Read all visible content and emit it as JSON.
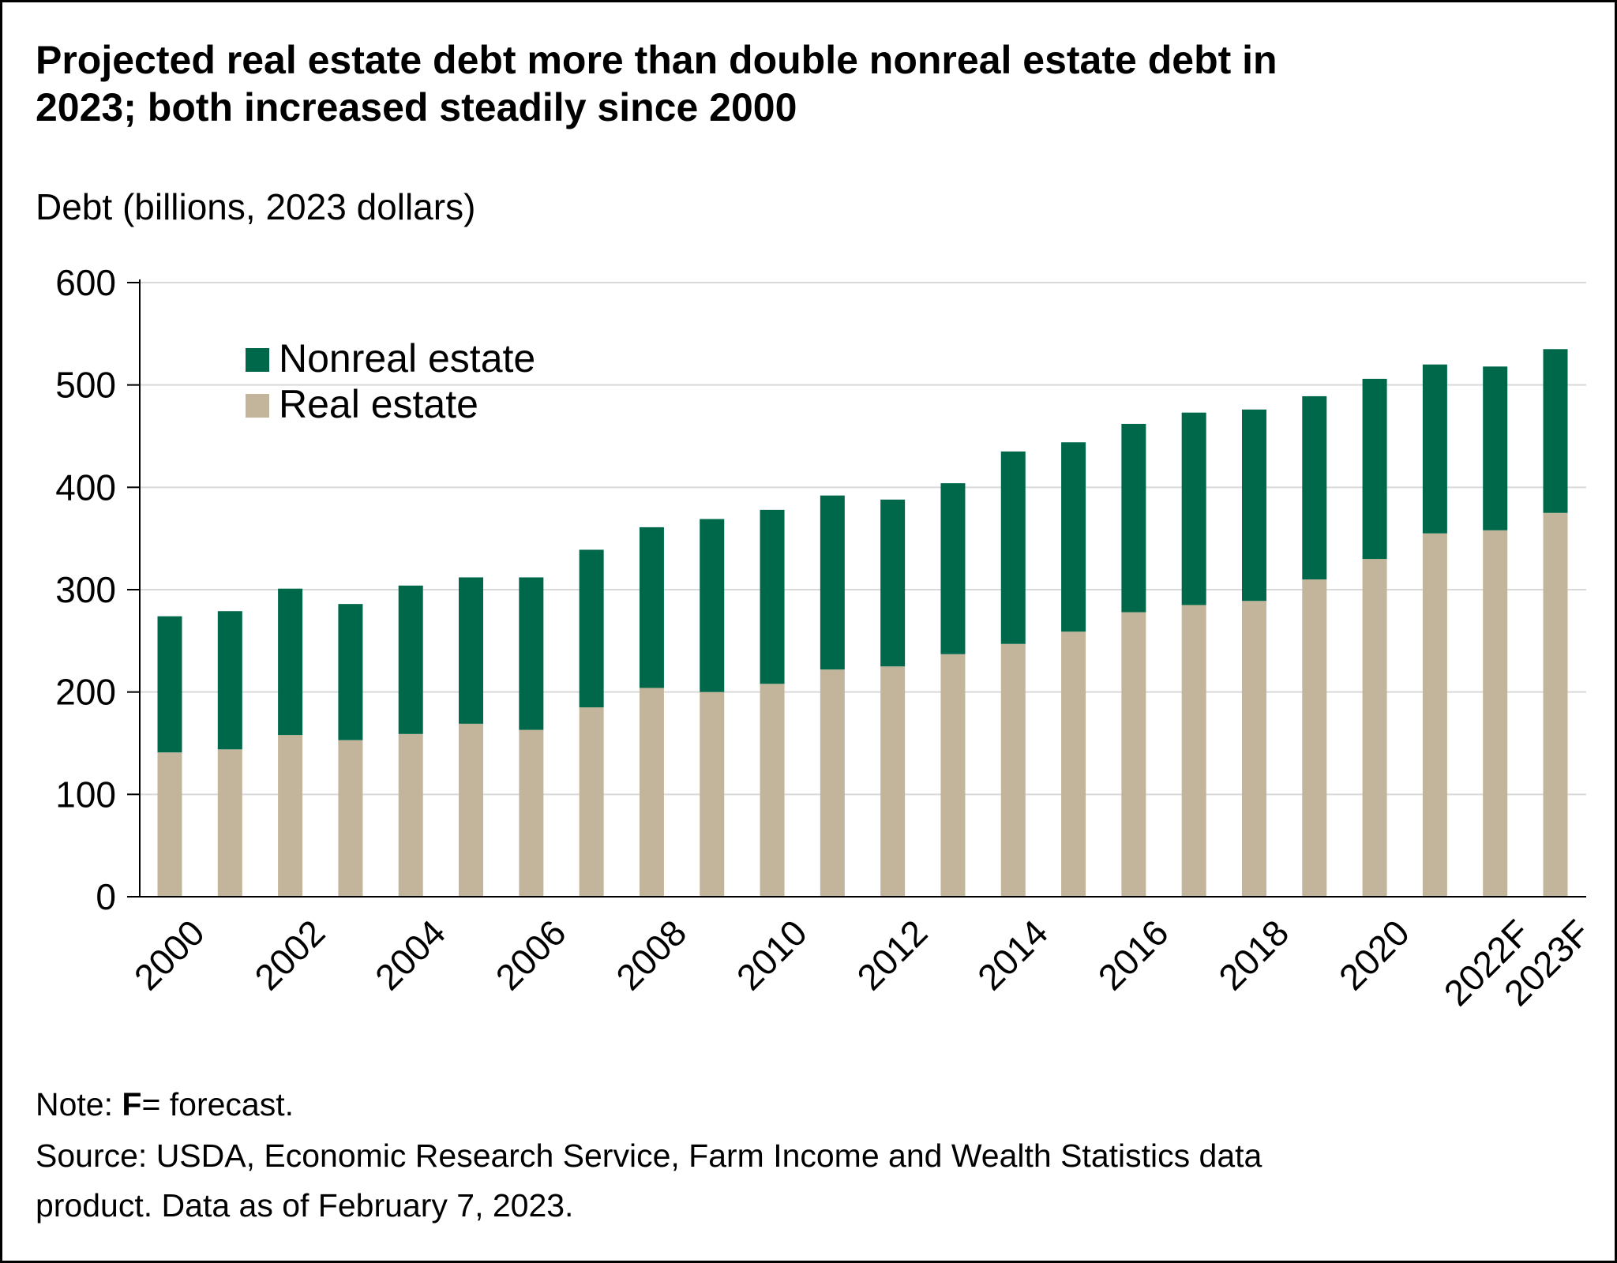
{
  "chart_data": {
    "type": "bar",
    "stacked": true,
    "title": "Projected real estate debt more than double nonreal estate debt in 2023; both increased steadily since 2000",
    "ylabel": "Debt (billions, 2023 dollars)",
    "xlabel": "",
    "ylim": [
      0,
      600
    ],
    "yticks": [
      0,
      100,
      200,
      300,
      400,
      500,
      600
    ],
    "grid": true,
    "legend_position": "top-left",
    "categories": [
      "2000",
      "2001",
      "2002",
      "2003",
      "2004",
      "2005",
      "2006",
      "2007",
      "2008",
      "2009",
      "2010",
      "2011",
      "2012",
      "2013",
      "2014",
      "2015",
      "2016",
      "2017",
      "2018",
      "2019",
      "2020",
      "2021",
      "2022F",
      "2023F"
    ],
    "tick_labels": [
      "2000",
      "",
      "2002",
      "",
      "2004",
      "",
      "2006",
      "",
      "2008",
      "",
      "2010",
      "",
      "2012",
      "",
      "2014",
      "",
      "2016",
      "",
      "2018",
      "",
      "2020",
      "",
      "2022F",
      "2023F"
    ],
    "series": [
      {
        "name": "Real estate",
        "color": "#c2b59b",
        "values": [
          141,
          144,
          158,
          153,
          159,
          169,
          163,
          185,
          204,
          200,
          208,
          222,
          225,
          237,
          247,
          259,
          278,
          285,
          289,
          310,
          330,
          355,
          358,
          375
        ]
      },
      {
        "name": "Nonreal estate",
        "color": "#00684a",
        "values": [
          133,
          135,
          143,
          133,
          145,
          143,
          149,
          154,
          157,
          169,
          170,
          170,
          163,
          167,
          188,
          185,
          184,
          188,
          187,
          179,
          176,
          165,
          160,
          160
        ]
      }
    ],
    "legend_order": [
      "Nonreal estate",
      "Real estate"
    ]
  },
  "note": {
    "prefix": "Note: ",
    "bold": "F",
    "suffix": "= forecast."
  },
  "source_lines": [
    "Source: USDA, Economic Research Service, Farm Income and Wealth Statistics data",
    "product. Data as of February 7, 2023."
  ],
  "colors": {
    "gridline": "#d9d9d9",
    "axis": "#000000"
  }
}
